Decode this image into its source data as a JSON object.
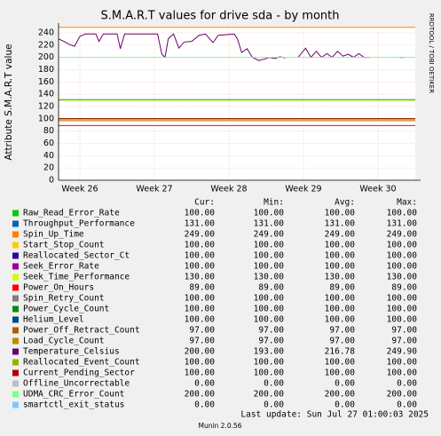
{
  "chart_data": {
    "type": "line",
    "title": "S.M.A.R.T values for drive sda - by month",
    "y_label": "Attribute S.M.A.R.T value",
    "watermark": "RRDTOOL / TOBI OETIKER",
    "xlim": [
      -2,
      31.5
    ],
    "xticks": [
      {
        "value": 0,
        "label": "Week 26"
      },
      {
        "value": 7,
        "label": "Week 27"
      },
      {
        "value": 14,
        "label": "Week 28"
      },
      {
        "value": 21,
        "label": "Week 29"
      },
      {
        "value": 28,
        "label": "Week 30"
      }
    ],
    "ylim": [
      0,
      250
    ],
    "yticks": [
      0,
      20,
      40,
      60,
      80,
      100,
      120,
      140,
      160,
      180,
      200,
      220,
      240
    ],
    "grid": true,
    "table_headers": [
      "Cur:",
      "Min:",
      "Avg:",
      "Max:"
    ],
    "series": [
      {
        "name": "Raw_Read_Error_Rate",
        "color": "#00cc00",
        "x": [
          -2,
          31.5
        ],
        "values": [
          100,
          100
        ],
        "stats": [
          "100.00",
          "100.00",
          "100.00",
          "100.00"
        ]
      },
      {
        "name": "Throughput_Performance",
        "color": "#0066b3",
        "x": [
          -2,
          31.5
        ],
        "values": [
          131,
          131
        ],
        "stats": [
          "131.00",
          "131.00",
          "131.00",
          "131.00"
        ]
      },
      {
        "name": "Spin_Up_Time",
        "color": "#ff8000",
        "x": [
          -2,
          31.5
        ],
        "values": [
          249,
          249
        ],
        "stats": [
          "249.00",
          "249.00",
          "249.00",
          "249.00"
        ]
      },
      {
        "name": "Start_Stop_Count",
        "color": "#ffcc00",
        "x": [
          -2,
          31.5
        ],
        "values": [
          100,
          100
        ],
        "stats": [
          "100.00",
          "100.00",
          "100.00",
          "100.00"
        ]
      },
      {
        "name": "Reallocated_Sector_Ct",
        "color": "#330099",
        "x": [
          -2,
          31.5
        ],
        "values": [
          100,
          100
        ],
        "stats": [
          "100.00",
          "100.00",
          "100.00",
          "100.00"
        ]
      },
      {
        "name": "Seek_Error_Rate",
        "color": "#990099",
        "x": [
          -2,
          31.5
        ],
        "values": [
          100,
          100
        ],
        "stats": [
          "100.00",
          "100.00",
          "100.00",
          "100.00"
        ]
      },
      {
        "name": "Seek_Time_Performance",
        "color": "#ccff00",
        "x": [
          -2,
          31.5
        ],
        "values": [
          130,
          130
        ],
        "stats": [
          "130.00",
          "130.00",
          "130.00",
          "130.00"
        ]
      },
      {
        "name": "Power_On_Hours",
        "color": "#ff0000",
        "x": [
          -2,
          31.5
        ],
        "values": [
          89,
          89
        ],
        "stats": [
          "89.00",
          "89.00",
          "89.00",
          "89.00"
        ]
      },
      {
        "name": "Spin_Retry_Count",
        "color": "#808080",
        "x": [
          -2,
          31.5
        ],
        "values": [
          100,
          100
        ],
        "stats": [
          "100.00",
          "100.00",
          "100.00",
          "100.00"
        ]
      },
      {
        "name": "Power_Cycle_Count",
        "color": "#008f00",
        "x": [
          -2,
          31.5
        ],
        "values": [
          100,
          100
        ],
        "stats": [
          "100.00",
          "100.00",
          "100.00",
          "100.00"
        ]
      },
      {
        "name": "Helium_Level",
        "color": "#00487d",
        "x": [
          -2,
          31.5
        ],
        "values": [
          100,
          100
        ],
        "stats": [
          "100.00",
          "100.00",
          "100.00",
          "100.00"
        ]
      },
      {
        "name": "Power_Off_Retract_Count",
        "color": "#b35a00",
        "x": [
          -2,
          31.5
        ],
        "values": [
          97,
          97
        ],
        "stats": [
          "97.00",
          "97.00",
          "97.00",
          "97.00"
        ]
      },
      {
        "name": "Load_Cycle_Count",
        "color": "#b38f00",
        "x": [
          -2,
          31.5
        ],
        "values": [
          97,
          97
        ],
        "stats": [
          "97.00",
          "97.00",
          "97.00",
          "97.00"
        ]
      },
      {
        "name": "Temperature_Celsius",
        "color": "#6b006b",
        "x": [
          -2.0,
          -1.5,
          -1.0,
          -0.5,
          0.0,
          0.5,
          1.5,
          1.8,
          2.2,
          3.5,
          3.8,
          4.2,
          7.3,
          7.7,
          8.0,
          8.3,
          8.8,
          9.3,
          9.8,
          10.5,
          11.2,
          11.8,
          12.5,
          13.0,
          14.5,
          14.8,
          15.2,
          15.7,
          16.2,
          16.8,
          17.3,
          17.8,
          18.3,
          18.8,
          19.3,
          19.8,
          20.5,
          21.2,
          21.7,
          22.2,
          22.7,
          23.2,
          23.7,
          24.2,
          24.7,
          25.2,
          25.7,
          26.2,
          26.7,
          27.3,
          27.8,
          30.0,
          30.5
        ],
        "values": [
          230,
          226,
          221,
          218,
          234,
          238,
          238,
          226,
          238,
          238,
          214,
          238,
          238,
          205,
          200,
          230,
          238,
          215,
          225,
          226,
          236,
          238,
          224,
          236,
          238,
          230,
          208,
          214,
          200,
          195,
          197,
          200,
          198,
          201,
          199,
          null,
          200,
          215,
          200,
          210,
          200,
          206,
          200,
          210,
          202,
          205,
          200,
          206,
          200,
          200,
          null,
          200,
          200
        ],
        "stats": [
          "200.00",
          "193.00",
          "216.78",
          "249.90"
        ]
      },
      {
        "name": "Reallocated_Event_Count",
        "color": "#8fb300",
        "x": [
          -2,
          31.5
        ],
        "values": [
          100,
          100
        ],
        "stats": [
          "100.00",
          "100.00",
          "100.00",
          "100.00"
        ]
      },
      {
        "name": "Current_Pending_Sector",
        "color": "#b30000",
        "x": [
          -2,
          31.5
        ],
        "values": [
          100,
          100
        ],
        "stats": [
          "100.00",
          "100.00",
          "100.00",
          "100.00"
        ]
      },
      {
        "name": "Offline_Uncorrectable",
        "color": "#bebebe",
        "x": [
          -2,
          31.5
        ],
        "values": [
          0,
          0
        ],
        "stats": [
          "0.00",
          "0.00",
          "0.00",
          "0.00"
        ]
      },
      {
        "name": "UDMA_CRC_Error_Count",
        "color": "#80ff80",
        "x": [
          -2,
          31.5
        ],
        "values": [
          200,
          200
        ],
        "stats": [
          "200.00",
          "200.00",
          "200.00",
          "200.00"
        ]
      },
      {
        "name": "smartctl_exit_status",
        "color": "#80c9ff",
        "dashed": true,
        "x": [
          -2,
          31.5
        ],
        "values": [
          0,
          0
        ],
        "stats": [
          "0.00",
          "0.00",
          "0.00",
          "0.00"
        ]
      }
    ],
    "last_update": "Last update: Sun Jul 27 01:00:03 2025",
    "footer": "Munin 2.0.56"
  }
}
